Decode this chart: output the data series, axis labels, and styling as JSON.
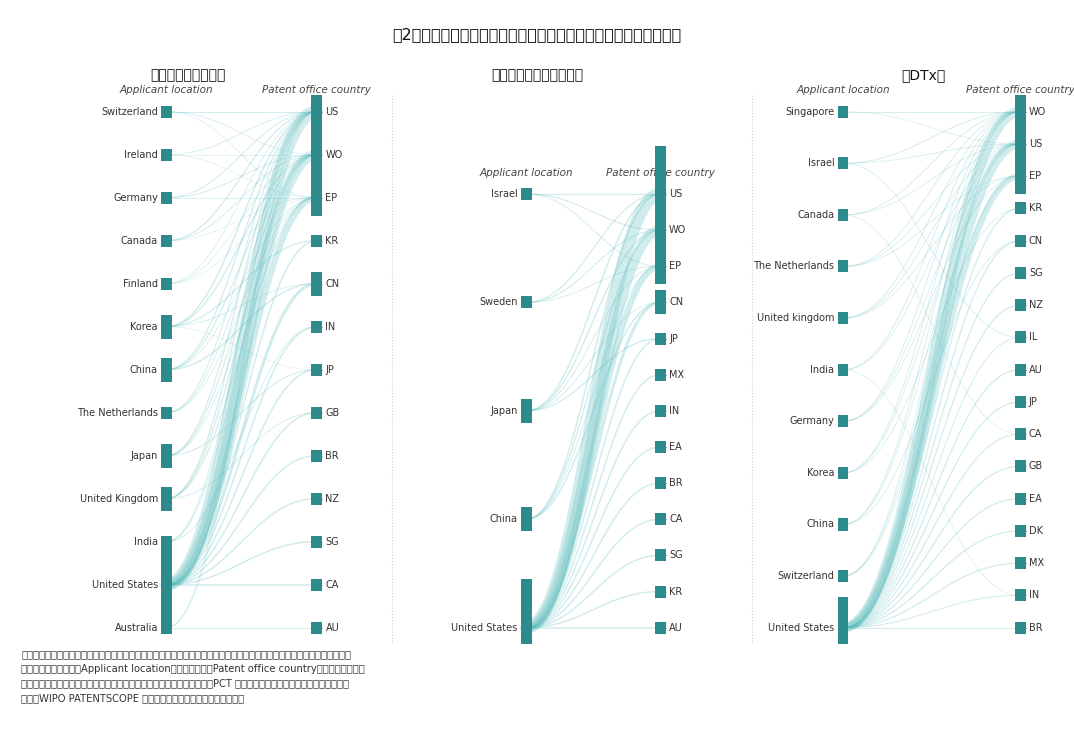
{
  "title": "図2　デジタルヘルス関連特許の出願人国籍と出願・移行国の関係",
  "subtitle_left": "（デジタルヘルス）",
  "subtitle_mid": "（デジタルメディスン）",
  "subtitle_right": "（DTx）",
  "panels": [
    {
      "left_nodes": [
        "Switzerland",
        "Ireland",
        "Germany",
        "Canada",
        "Finland",
        "Korea",
        "China",
        "The Netherlands",
        "Japan",
        "United Kingdom",
        "India",
        "United States",
        "Australia"
      ],
      "left_sizes": [
        1,
        1,
        1,
        1,
        1,
        2,
        2,
        1,
        2,
        2,
        1,
        8,
        1
      ],
      "right_nodes": [
        "US",
        "WO",
        "EP",
        "KR",
        "CN",
        "IN",
        "JP",
        "GB",
        "BR",
        "NZ",
        "SG",
        "CA",
        "AU"
      ],
      "right_sizes": [
        8,
        5,
        3,
        1,
        2,
        1,
        1,
        1,
        1,
        1,
        1,
        1,
        1
      ],
      "flows": [
        [
          "Switzerland",
          "US",
          0.4
        ],
        [
          "Switzerland",
          "WO",
          0.3
        ],
        [
          "Switzerland",
          "EP",
          0.25
        ],
        [
          "Ireland",
          "US",
          0.35
        ],
        [
          "Ireland",
          "WO",
          0.25
        ],
        [
          "Ireland",
          "EP",
          0.2
        ],
        [
          "Germany",
          "US",
          0.4
        ],
        [
          "Germany",
          "WO",
          0.35
        ],
        [
          "Germany",
          "EP",
          0.3
        ],
        [
          "Canada",
          "US",
          0.5
        ],
        [
          "Canada",
          "WO",
          0.35
        ],
        [
          "Canada",
          "EP",
          0.2
        ],
        [
          "Finland",
          "US",
          0.3
        ],
        [
          "Finland",
          "WO",
          0.25
        ],
        [
          "Finland",
          "EP",
          0.2
        ],
        [
          "Korea",
          "US",
          0.6
        ],
        [
          "Korea",
          "WO",
          0.55
        ],
        [
          "Korea",
          "KR",
          0.5
        ],
        [
          "Korea",
          "CN",
          0.3
        ],
        [
          "Korea",
          "JP",
          0.2
        ],
        [
          "China",
          "US",
          0.5
        ],
        [
          "China",
          "WO",
          0.45
        ],
        [
          "China",
          "EP",
          0.3
        ],
        [
          "China",
          "CN",
          0.6
        ],
        [
          "The Netherlands",
          "US",
          0.4
        ],
        [
          "The Netherlands",
          "WO",
          0.35
        ],
        [
          "The Netherlands",
          "EP",
          0.3
        ],
        [
          "Japan",
          "US",
          0.5
        ],
        [
          "Japan",
          "WO",
          0.45
        ],
        [
          "Japan",
          "EP",
          0.3
        ],
        [
          "Japan",
          "JP",
          0.4
        ],
        [
          "United Kingdom",
          "US",
          0.55
        ],
        [
          "United Kingdom",
          "WO",
          0.5
        ],
        [
          "United Kingdom",
          "EP",
          0.45
        ],
        [
          "United Kingdom",
          "GB",
          0.35
        ],
        [
          "India",
          "US",
          0.4
        ],
        [
          "India",
          "WO",
          0.35
        ],
        [
          "India",
          "IN",
          0.35
        ],
        [
          "United States",
          "US",
          7.0
        ],
        [
          "United States",
          "WO",
          4.0
        ],
        [
          "United States",
          "EP",
          2.5
        ],
        [
          "United States",
          "KR",
          0.6
        ],
        [
          "United States",
          "CN",
          1.2
        ],
        [
          "United States",
          "IN",
          0.6
        ],
        [
          "United States",
          "JP",
          0.6
        ],
        [
          "United States",
          "GB",
          0.6
        ],
        [
          "United States",
          "BR",
          0.6
        ],
        [
          "United States",
          "NZ",
          0.6
        ],
        [
          "United States",
          "SG",
          0.6
        ],
        [
          "United States",
          "CA",
          0.6
        ],
        [
          "Australia",
          "US",
          0.35
        ],
        [
          "Australia",
          "WO",
          0.25
        ],
        [
          "Australia",
          "AU",
          0.35
        ]
      ]
    },
    {
      "left_nodes": [
        "Israel",
        "Sweden",
        "Japan",
        "China",
        "United States"
      ],
      "left_sizes": [
        1,
        1,
        2,
        2,
        8
      ],
      "right_nodes": [
        "US",
        "WO",
        "EP",
        "CN",
        "JP",
        "MX",
        "IN",
        "EA",
        "BR",
        "CA",
        "SG",
        "KR",
        "AU"
      ],
      "right_sizes": [
        8,
        5,
        3,
        2,
        1,
        1,
        1,
        1,
        1,
        1,
        1,
        1,
        1
      ],
      "flows": [
        [
          "Israel",
          "US",
          0.5
        ],
        [
          "Israel",
          "WO",
          0.45
        ],
        [
          "Israel",
          "EP",
          0.35
        ],
        [
          "Sweden",
          "US",
          0.5
        ],
        [
          "Sweden",
          "WO",
          0.45
        ],
        [
          "Sweden",
          "EP",
          0.35
        ],
        [
          "Japan",
          "US",
          0.6
        ],
        [
          "Japan",
          "WO",
          0.55
        ],
        [
          "Japan",
          "EP",
          0.35
        ],
        [
          "Japan",
          "JP",
          0.55
        ],
        [
          "Japan",
          "CN",
          0.35
        ],
        [
          "China",
          "US",
          0.6
        ],
        [
          "China",
          "WO",
          0.55
        ],
        [
          "China",
          "EP",
          0.35
        ],
        [
          "China",
          "CN",
          0.6
        ],
        [
          "United States",
          "US",
          7.0
        ],
        [
          "United States",
          "WO",
          4.0
        ],
        [
          "United States",
          "EP",
          2.5
        ],
        [
          "United States",
          "CN",
          1.2
        ],
        [
          "United States",
          "JP",
          0.6
        ],
        [
          "United States",
          "MX",
          0.6
        ],
        [
          "United States",
          "IN",
          0.6
        ],
        [
          "United States",
          "EA",
          0.6
        ],
        [
          "United States",
          "BR",
          0.6
        ],
        [
          "United States",
          "CA",
          0.6
        ],
        [
          "United States",
          "SG",
          0.6
        ],
        [
          "United States",
          "KR",
          0.6
        ],
        [
          "United States",
          "AU",
          0.6
        ]
      ]
    },
    {
      "left_nodes": [
        "Singapore",
        "Israel",
        "Canada",
        "The Netherlands",
        "United kingdom",
        "India",
        "Germany",
        "Korea",
        "China",
        "Switzerland",
        "United States"
      ],
      "left_sizes": [
        1,
        1,
        1,
        1,
        1,
        1,
        1,
        1,
        1,
        1,
        5
      ],
      "right_nodes": [
        "WO",
        "US",
        "EP",
        "KR",
        "CN",
        "SG",
        "NZ",
        "IL",
        "AU",
        "JP",
        "CA",
        "GB",
        "EA",
        "DK",
        "MX",
        "IN",
        "BR"
      ],
      "right_sizes": [
        5,
        4,
        3,
        1,
        1,
        1,
        1,
        1,
        1,
        1,
        1,
        1,
        1,
        1,
        1,
        1,
        1
      ],
      "flows": [
        [
          "Singapore",
          "WO",
          0.35
        ],
        [
          "Singapore",
          "US",
          0.25
        ],
        [
          "Israel",
          "WO",
          0.35
        ],
        [
          "Israel",
          "US",
          0.3
        ],
        [
          "Israel",
          "IL",
          0.3
        ],
        [
          "Canada",
          "WO",
          0.35
        ],
        [
          "Canada",
          "US",
          0.3
        ],
        [
          "Canada",
          "CA",
          0.25
        ],
        [
          "The Netherlands",
          "WO",
          0.35
        ],
        [
          "The Netherlands",
          "US",
          0.3
        ],
        [
          "The Netherlands",
          "EP",
          0.3
        ],
        [
          "United kingdom",
          "WO",
          0.35
        ],
        [
          "United kingdom",
          "US",
          0.3
        ],
        [
          "United kingdom",
          "EP",
          0.3
        ],
        [
          "India",
          "WO",
          0.35
        ],
        [
          "India",
          "US",
          0.3
        ],
        [
          "India",
          "IN",
          0.25
        ],
        [
          "Germany",
          "WO",
          0.35
        ],
        [
          "Germany",
          "US",
          0.3
        ],
        [
          "Germany",
          "EP",
          0.3
        ],
        [
          "Korea",
          "WO",
          0.35
        ],
        [
          "Korea",
          "US",
          0.3
        ],
        [
          "Korea",
          "KR",
          0.3
        ],
        [
          "China",
          "WO",
          0.35
        ],
        [
          "China",
          "US",
          0.3
        ],
        [
          "China",
          "CN",
          0.3
        ],
        [
          "Switzerland",
          "WO",
          0.35
        ],
        [
          "Switzerland",
          "US",
          0.3
        ],
        [
          "Switzerland",
          "EP",
          0.3
        ],
        [
          "United States",
          "WO",
          4.0
        ],
        [
          "United States",
          "US",
          3.5
        ],
        [
          "United States",
          "EP",
          2.5
        ],
        [
          "United States",
          "KR",
          0.5
        ],
        [
          "United States",
          "CN",
          0.5
        ],
        [
          "United States",
          "SG",
          0.5
        ],
        [
          "United States",
          "NZ",
          0.5
        ],
        [
          "United States",
          "IL",
          0.4
        ],
        [
          "United States",
          "AU",
          0.5
        ],
        [
          "United States",
          "JP",
          0.5
        ],
        [
          "United States",
          "CA",
          0.5
        ],
        [
          "United States",
          "GB",
          0.5
        ],
        [
          "United States",
          "EA",
          0.5
        ],
        [
          "United States",
          "DK",
          0.5
        ],
        [
          "United States",
          "MX",
          0.5
        ],
        [
          "United States",
          "IN",
          0.4
        ],
        [
          "United States",
          "BR",
          0.4
        ]
      ]
    }
  ],
  "bar_color": "#2E8B8B",
  "flow_color": "#5BBCBC",
  "flow_alpha": 0.28,
  "bg_color": "#ffffff",
  "note_lines": [
    "注：特許出願・移行の地理的影響を分析するため、関連特許を含む全ての特許を集計した。ただし、個人及び国籍不明の出",
    "　　願人は除いた。（Applicant location：出願人国籍、Patent office country：出願・移行国）",
    "　　なお、集計に際し、各国・地域官庁への直接出願と特許協力条約（PCT 出願）による各国移行は区別していない。",
    "出所：WIPO PATENTSCOPE をもとに医薬産業政策研究所にて作成"
  ]
}
